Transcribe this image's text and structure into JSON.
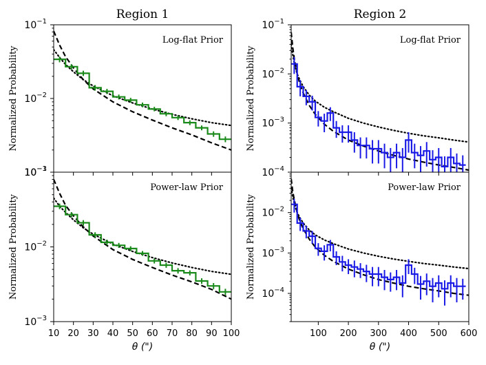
{
  "chart_data": [
    {
      "id": "r1-top",
      "type": "step",
      "panel": "top-left",
      "column_title": "Region 1",
      "title": "",
      "annotation": "Log-flat Prior",
      "ylabel": "Normalized Probability",
      "xlabel": "",
      "xlim": [
        10,
        100
      ],
      "ylim": [
        0.001,
        0.1
      ],
      "yscale": "log",
      "show_xticklabels": false,
      "yticks": [
        {
          "v": 0.001,
          "base": "10",
          "exp": "−3"
        },
        {
          "v": 0.01,
          "base": "10",
          "exp": "−2"
        },
        {
          "v": 0.1,
          "base": "10",
          "exp": "−1"
        }
      ],
      "xticks": [],
      "hist": {
        "color": "#1a8a1a",
        "edges": [
          10,
          16,
          22,
          28,
          34,
          40,
          46,
          52,
          58,
          64,
          70,
          76,
          82,
          88,
          94,
          100
        ],
        "values": [
          0.034,
          0.027,
          0.022,
          0.014,
          0.0125,
          0.0105,
          0.0095,
          0.0082,
          0.0072,
          0.0062,
          0.0055,
          0.0047,
          0.004,
          0.0033,
          0.0028
        ],
        "errors": [
          0.003,
          0.0022,
          0.0018,
          0.0012,
          0.001,
          0.0008,
          0.0007,
          0.0006,
          0.0005,
          0.00045,
          0.0004,
          0.00035,
          0.0003,
          0.00028,
          0.00025
        ]
      },
      "dashed": {
        "x": [
          10,
          13,
          16,
          20,
          25,
          30,
          40,
          50,
          60,
          70,
          80,
          90,
          100
        ],
        "y": [
          0.082,
          0.053,
          0.037,
          0.026,
          0.018,
          0.0135,
          0.009,
          0.0066,
          0.0051,
          0.004,
          0.0032,
          0.0025,
          0.002
        ]
      },
      "dotted": {
        "x": [
          10,
          13,
          16,
          20,
          25,
          30,
          40,
          50,
          60,
          70,
          80,
          90,
          100
        ],
        "y": [
          0.046,
          0.036,
          0.029,
          0.023,
          0.018,
          0.0148,
          0.0109,
          0.0087,
          0.0072,
          0.0061,
          0.0053,
          0.0047,
          0.0043
        ]
      }
    },
    {
      "id": "r1-bottom",
      "type": "step",
      "panel": "bottom-left",
      "column_title": "",
      "title": "",
      "annotation": "Power-law Prior",
      "ylabel": "Normalized Probability",
      "xlabel": "θ (\")",
      "xlim": [
        10,
        100
      ],
      "ylim": [
        0.001,
        0.1
      ],
      "yscale": "log",
      "show_xticklabels": true,
      "yticks": [
        {
          "v": 0.001,
          "base": "10",
          "exp": "−3"
        },
        {
          "v": 0.01,
          "base": "10",
          "exp": "−2"
        },
        {
          "v": 0.1,
          "base": "10",
          "exp": "−1"
        }
      ],
      "xticks": [
        {
          "v": 10,
          "label": "10"
        },
        {
          "v": 20,
          "label": "20"
        },
        {
          "v": 30,
          "label": "30"
        },
        {
          "v": 40,
          "label": "40"
        },
        {
          "v": 50,
          "label": "50"
        },
        {
          "v": 60,
          "label": "60"
        },
        {
          "v": 70,
          "label": "70"
        },
        {
          "v": 80,
          "label": "80"
        },
        {
          "v": 90,
          "label": "90"
        },
        {
          "v": 100,
          "label": "100"
        }
      ],
      "hist": {
        "color": "#1a8a1a",
        "edges": [
          10,
          16,
          22,
          28,
          34,
          40,
          46,
          52,
          58,
          64,
          70,
          76,
          82,
          88,
          94,
          100
        ],
        "values": [
          0.035,
          0.027,
          0.021,
          0.0145,
          0.0115,
          0.0105,
          0.0095,
          0.0082,
          0.0065,
          0.0057,
          0.0048,
          0.0045,
          0.0035,
          0.003,
          0.0025
        ],
        "errors": [
          0.003,
          0.0022,
          0.0018,
          0.0012,
          0.001,
          0.0008,
          0.0007,
          0.0006,
          0.0005,
          0.00045,
          0.0004,
          0.00035,
          0.0003,
          0.00028,
          0.00025
        ]
      },
      "dashed": {
        "x": [
          10,
          13,
          16,
          20,
          25,
          30,
          40,
          50,
          60,
          70,
          80,
          90,
          100
        ],
        "y": [
          0.08,
          0.052,
          0.036,
          0.026,
          0.0185,
          0.014,
          0.0092,
          0.0068,
          0.0053,
          0.0042,
          0.0034,
          0.0027,
          0.002
        ]
      },
      "dotted": {
        "x": [
          10,
          13,
          16,
          20,
          25,
          30,
          40,
          50,
          60,
          70,
          80,
          90,
          100
        ],
        "y": [
          0.045,
          0.035,
          0.029,
          0.023,
          0.018,
          0.0148,
          0.0109,
          0.0087,
          0.0072,
          0.0061,
          0.0053,
          0.0047,
          0.0043
        ]
      }
    },
    {
      "id": "r2-top",
      "type": "step",
      "panel": "top-right",
      "column_title": "Region 2",
      "title": "",
      "annotation": "Log-flat Prior",
      "ylabel": "Normalized Probability",
      "xlabel": "",
      "xlim": [
        10,
        600
      ],
      "ylim": [
        0.0001,
        0.1
      ],
      "yscale": "log",
      "show_xticklabels": false,
      "yticks": [
        {
          "v": 0.0001,
          "base": "10",
          "exp": "−4"
        },
        {
          "v": 0.001,
          "base": "10",
          "exp": "−3"
        },
        {
          "v": 0.01,
          "base": "10",
          "exp": "−2"
        },
        {
          "v": 0.1,
          "base": "10",
          "exp": "−1"
        }
      ],
      "xticks": [],
      "hist": {
        "color": "#1a1ae6",
        "edges": [
          10,
          30,
          50,
          70,
          90,
          110,
          130,
          150,
          170,
          190,
          210,
          230,
          250,
          270,
          290,
          310,
          330,
          350,
          370,
          390,
          410,
          430,
          450,
          470,
          490,
          510,
          530,
          550,
          570,
          590
        ],
        "values": [
          0.016,
          0.0055,
          0.0035,
          0.0027,
          0.0013,
          0.0011,
          0.0016,
          0.0008,
          0.00065,
          0.00065,
          0.00045,
          0.00035,
          0.00035,
          0.0003,
          0.0003,
          0.00025,
          0.0002,
          0.00025,
          0.0002,
          0.00045,
          0.00025,
          0.00022,
          0.00027,
          0.00018,
          0.0002,
          0.00013,
          0.0002,
          0.00015,
          0.00014
        ],
        "errors": [
          0.006,
          0.002,
          0.0012,
          0.0009,
          0.00045,
          0.00045,
          0.0005,
          0.0003,
          0.00025,
          0.00025,
          0.0002,
          0.00016,
          0.00016,
          0.00015,
          0.00015,
          0.00013,
          0.00011,
          0.00013,
          0.00011,
          0.0002,
          0.00013,
          0.00012,
          0.00014,
          0.0001,
          0.00011,
          8e-05,
          0.00011,
          9e-05,
          8e-05
        ]
      },
      "dashed": {
        "x": [
          10,
          15,
          20,
          30,
          40,
          50,
          70,
          90,
          120,
          150,
          200,
          250,
          300,
          350,
          400,
          450,
          500,
          550,
          600
        ],
        "y": [
          0.07,
          0.035,
          0.021,
          0.01,
          0.006,
          0.0041,
          0.0023,
          0.0015,
          0.00095,
          0.00068,
          0.00045,
          0.00034,
          0.00027,
          0.00022,
          0.000185,
          0.00016,
          0.00014,
          0.000125,
          0.00011
        ]
      },
      "dotted": {
        "x": [
          10,
          15,
          20,
          30,
          40,
          50,
          70,
          90,
          120,
          150,
          200,
          250,
          300,
          350,
          400,
          450,
          500,
          550,
          600
        ],
        "y": [
          0.04,
          0.025,
          0.017,
          0.01,
          0.0072,
          0.0055,
          0.0037,
          0.0028,
          0.0021,
          0.0017,
          0.00125,
          0.001,
          0.00083,
          0.00071,
          0.00062,
          0.00055,
          0.0005,
          0.00045,
          0.00041
        ]
      }
    },
    {
      "id": "r2-bottom",
      "type": "step",
      "panel": "bottom-right",
      "column_title": "",
      "title": "",
      "annotation": "Power-law Prior",
      "ylabel": "Normalized Probability",
      "xlabel": "θ (\")",
      "xlim": [
        10,
        600
      ],
      "ylim": [
        2e-05,
        0.1
      ],
      "yscale": "log",
      "show_xticklabels": true,
      "yticks": [
        {
          "v": 0.0001,
          "base": "10",
          "exp": "−4"
        },
        {
          "v": 0.001,
          "base": "10",
          "exp": "−3"
        },
        {
          "v": 0.01,
          "base": "10",
          "exp": "−2"
        }
      ],
      "xticks": [
        {
          "v": 100,
          "label": "100"
        },
        {
          "v": 200,
          "label": "200"
        },
        {
          "v": 300,
          "label": "300"
        },
        {
          "v": 400,
          "label": "400"
        },
        {
          "v": 500,
          "label": "500"
        },
        {
          "v": 600,
          "label": "600"
        }
      ],
      "hist": {
        "color": "#1a1ae6",
        "edges": [
          10,
          30,
          50,
          70,
          90,
          110,
          130,
          150,
          170,
          190,
          210,
          230,
          250,
          270,
          290,
          310,
          330,
          350,
          370,
          390,
          410,
          430,
          450,
          470,
          490,
          510,
          530,
          550,
          570,
          590
        ],
        "values": [
          0.016,
          0.0055,
          0.0035,
          0.0026,
          0.0013,
          0.0011,
          0.0016,
          0.0008,
          0.0006,
          0.0005,
          0.00045,
          0.0004,
          0.00035,
          0.0003,
          0.0003,
          0.00025,
          0.00022,
          0.00025,
          0.00018,
          0.0005,
          0.0003,
          0.00017,
          0.0002,
          0.00015,
          0.00018,
          0.00013,
          0.00018,
          0.00015,
          0.00015
        ],
        "errors": [
          0.006,
          0.002,
          0.0012,
          0.0009,
          0.00045,
          0.00045,
          0.0005,
          0.0003,
          0.00025,
          0.0002,
          0.0002,
          0.00016,
          0.00016,
          0.00015,
          0.00015,
          0.00013,
          0.00011,
          0.00013,
          0.0001,
          0.0002,
          0.00013,
          0.0001,
          0.00011,
          9e-05,
          0.0001,
          8e-05,
          0.0001,
          9e-05,
          8e-05
        ]
      },
      "dashed": {
        "x": [
          10,
          15,
          20,
          30,
          40,
          50,
          70,
          90,
          120,
          150,
          200,
          250,
          300,
          350,
          400,
          450,
          500,
          550,
          600
        ],
        "y": [
          0.068,
          0.034,
          0.021,
          0.01,
          0.0058,
          0.004,
          0.0022,
          0.0014,
          0.00088,
          0.00062,
          0.0004,
          0.00029,
          0.00022,
          0.00018,
          0.00015,
          0.00013,
          0.000115,
          0.0001,
          9e-05
        ]
      },
      "dotted": {
        "x": [
          10,
          15,
          20,
          30,
          40,
          50,
          70,
          90,
          120,
          150,
          200,
          250,
          300,
          350,
          400,
          450,
          500,
          550,
          600
        ],
        "y": [
          0.04,
          0.025,
          0.017,
          0.01,
          0.0072,
          0.0055,
          0.0037,
          0.0028,
          0.0021,
          0.0017,
          0.00125,
          0.001,
          0.00083,
          0.00071,
          0.00062,
          0.00055,
          0.0005,
          0.00045,
          0.00041
        ]
      }
    }
  ]
}
